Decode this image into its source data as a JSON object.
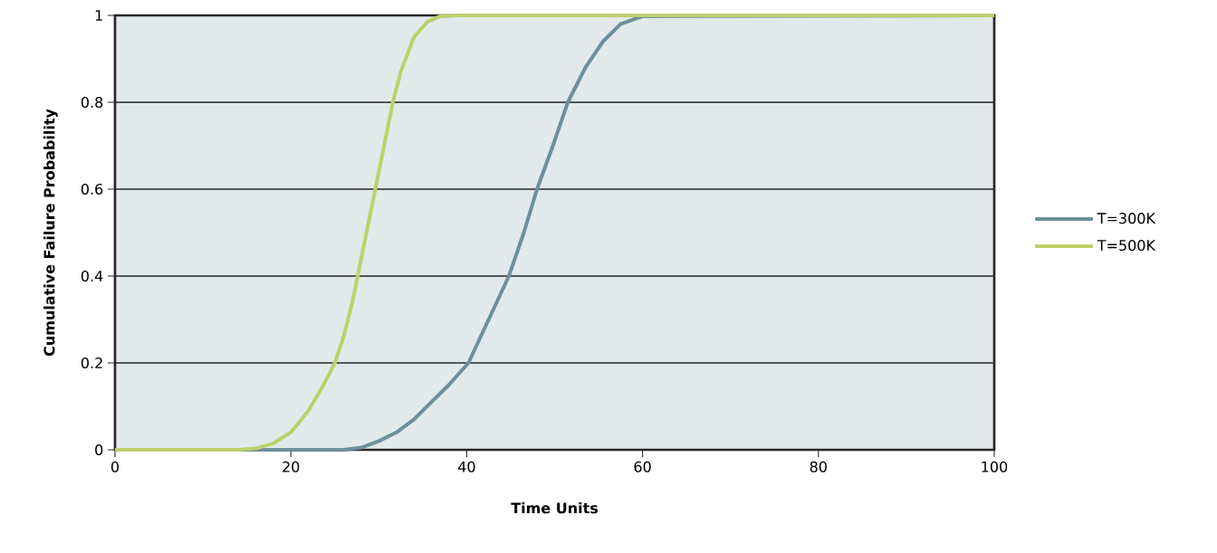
{
  "chart_data": {
    "type": "line",
    "xlabel": "Time Units",
    "ylabel": "Cumulative Failure Probability",
    "xlim": [
      0,
      100
    ],
    "ylim": [
      0,
      1
    ],
    "xticks": [
      0,
      20,
      40,
      60,
      80,
      100
    ],
    "yticks": [
      0,
      0.2,
      0.4,
      0.6,
      0.8,
      1
    ],
    "grid": "y",
    "legend": "right",
    "marker": "none",
    "line_style": "solid",
    "series": [
      {
        "name": "T=300K",
        "color": "#6e8f9b",
        "x": [
          0,
          26,
          28,
          30,
          32,
          34,
          36,
          38,
          40.2,
          42.5,
          44.8,
          46.5,
          48,
          49.8,
          51.5,
          53.5,
          55.5,
          57.5,
          60,
          100
        ],
        "values": [
          0,
          0,
          0.005,
          0.02,
          0.04,
          0.07,
          0.11,
          0.15,
          0.2,
          0.3,
          0.4,
          0.5,
          0.6,
          0.7,
          0.8,
          0.88,
          0.94,
          0.98,
          0.998,
          1
        ]
      },
      {
        "name": "T=500K",
        "color": "#bdd06a",
        "x": [
          0,
          14,
          16,
          18,
          20,
          22,
          24,
          25,
          26,
          27,
          27.6,
          28.6,
          29.6,
          30.6,
          31.6,
          32.5,
          34,
          35.5,
          37,
          39,
          100
        ],
        "values": [
          0,
          0,
          0.003,
          0.015,
          0.04,
          0.09,
          0.16,
          0.2,
          0.26,
          0.34,
          0.4,
          0.5,
          0.6,
          0.7,
          0.8,
          0.87,
          0.95,
          0.985,
          0.998,
          1,
          1
        ]
      }
    ]
  }
}
